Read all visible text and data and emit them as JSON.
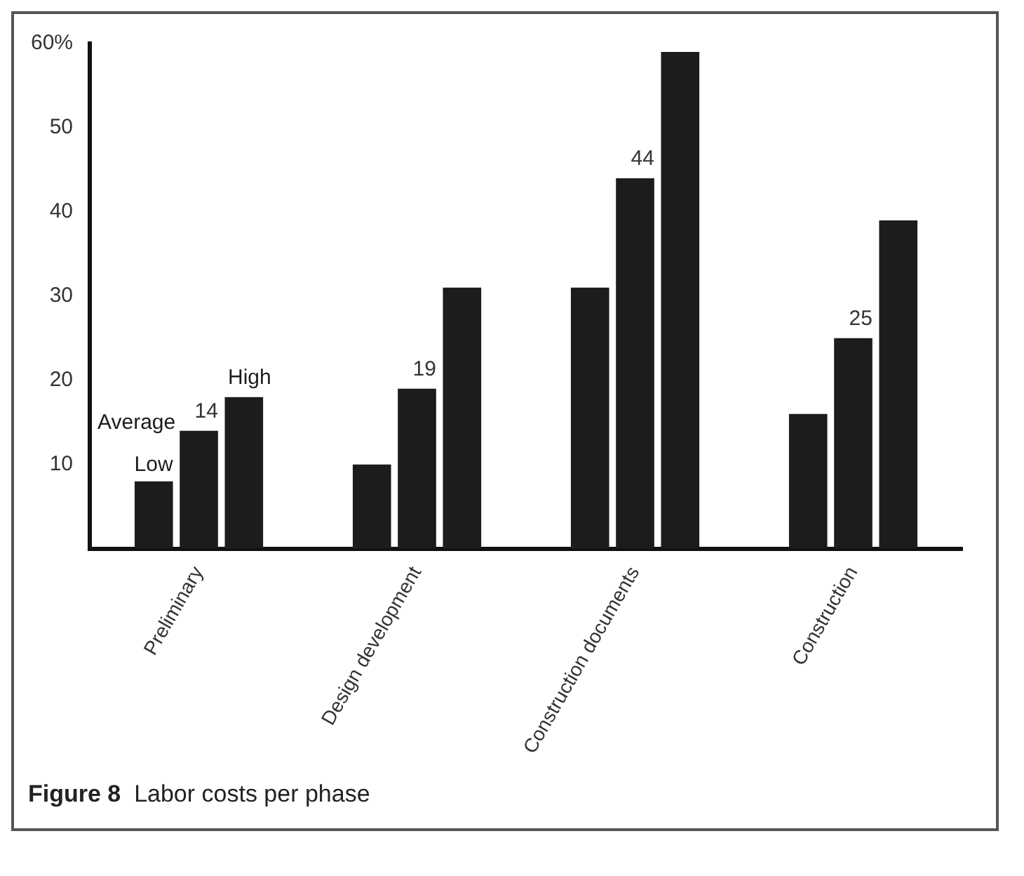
{
  "chart_data": {
    "type": "bar",
    "title": "Figure 8  Labor costs per phase",
    "categories": [
      "Preliminary",
      "Design development",
      "Construction documents",
      "Construction"
    ],
    "series": [
      {
        "name": "Low",
        "color": "#1c1c1c",
        "values": [
          8,
          10,
          31,
          16
        ]
      },
      {
        "name": "Average",
        "color": "#1c1c1c",
        "values": [
          14,
          19,
          44,
          25
        ],
        "value_labels": [
          "14",
          "19",
          "44",
          "25"
        ]
      },
      {
        "name": "High",
        "color": "#1c1c1c",
        "values": [
          18,
          31,
          59,
          39
        ]
      }
    ],
    "ylim": [
      0,
      60
    ],
    "yticks": [
      10,
      20,
      30,
      40,
      50,
      {
        "value": 60,
        "label": "60%"
      }
    ],
    "grid": false,
    "legend": false
  }
}
